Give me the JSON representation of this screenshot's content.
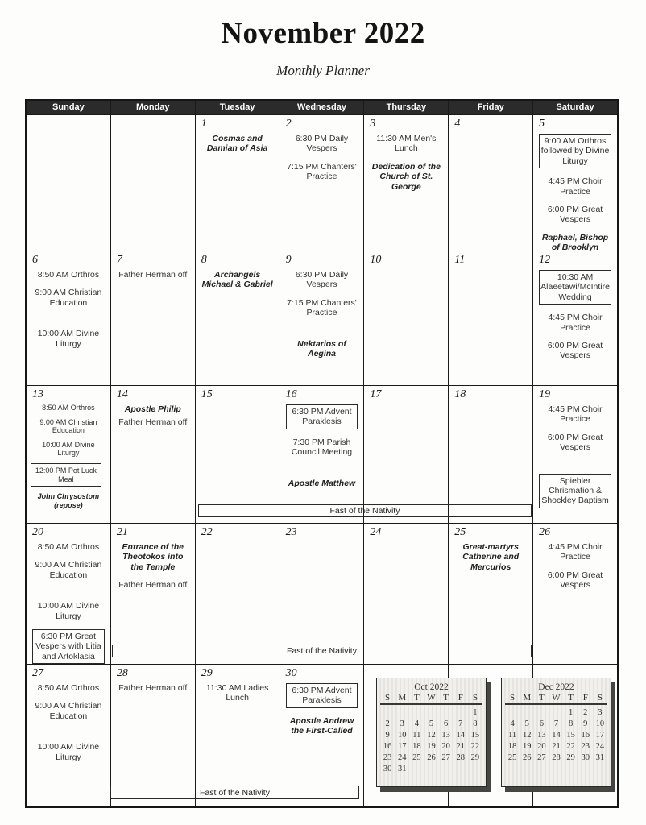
{
  "page": {
    "title": "November 2022",
    "subtitle": "Monthly Planner"
  },
  "colors": {
    "header_bg": "#2b2b2b",
    "header_text": "#ffffff",
    "grid_line": "#1a1a1a",
    "paper": "#fdfdfb"
  },
  "weekday_headers": [
    "Sunday",
    "Monday",
    "Tuesday",
    "Wednesday",
    "Thursday",
    "Friday",
    "Saturday"
  ],
  "weeks": [
    [
      null,
      null,
      {
        "date": "1",
        "events": [
          {
            "style": "saint",
            "text": "Cosmas and Damian of Asia"
          }
        ]
      },
      {
        "date": "2",
        "events": [
          {
            "style": "plain",
            "text": "6:30 PM Daily Vespers"
          },
          {
            "style": "plain",
            "text": "7:15 PM Chanters' Practice",
            "gap": 1
          }
        ]
      },
      {
        "date": "3",
        "events": [
          {
            "style": "plain",
            "text": "11:30 AM Men's Lunch"
          },
          {
            "style": "saint",
            "text": "Dedication of the Church of St. George",
            "gap": 1
          }
        ]
      },
      {
        "date": "4",
        "events": []
      },
      {
        "date": "5",
        "events": [
          {
            "style": "boxed",
            "text": "9:00 AM Orthros followed by Divine Liturgy"
          },
          {
            "style": "plain",
            "text": "4:45 PM Choir Practice",
            "gap": 1
          },
          {
            "style": "plain",
            "text": "6:00 PM Great Vespers",
            "gap": 1
          },
          {
            "style": "saint",
            "text": "Raphael, Bishop of Brooklyn",
            "gap": 1
          }
        ]
      }
    ],
    [
      {
        "date": "6",
        "events": [
          {
            "style": "plain",
            "text": "8:50 AM Orthros"
          },
          {
            "style": "plain",
            "text": "9:00 AM Christian Education",
            "gap": 1
          },
          {
            "style": "plain",
            "text": "10:00 AM Divine Liturgy",
            "gap": 2
          }
        ]
      },
      {
        "date": "7",
        "events": [
          {
            "style": "plain",
            "text": "Father Herman off"
          }
        ]
      },
      {
        "date": "8",
        "events": [
          {
            "style": "saint",
            "text": "Archangels Michael & Gabriel"
          }
        ]
      },
      {
        "date": "9",
        "events": [
          {
            "style": "plain",
            "text": "6:30 PM Daily Vespers"
          },
          {
            "style": "plain",
            "text": "7:15 PM Chanters' Practice",
            "gap": 1
          },
          {
            "style": "saint",
            "text": "Nektarios of Aegina",
            "gap": 2
          }
        ]
      },
      {
        "date": "10",
        "events": []
      },
      {
        "date": "11",
        "events": []
      },
      {
        "date": "12",
        "events": [
          {
            "style": "boxed",
            "text": "10:30 AM Alaeetawi/McIntire Wedding"
          },
          {
            "style": "plain",
            "text": "4:45 PM Choir Practice",
            "gap": 1
          },
          {
            "style": "plain",
            "text": "6:00 PM Great Vespers",
            "gap": 1
          }
        ]
      }
    ],
    [
      {
        "date": "13",
        "compact": true,
        "events": [
          {
            "style": "plain",
            "text": "8:50 AM Orthros"
          },
          {
            "style": "plain",
            "text": "9:00 AM Christian Education",
            "gap": 1
          },
          {
            "style": "plain",
            "text": "10:00 AM Divine Liturgy",
            "gap": 1
          },
          {
            "style": "boxed",
            "text": "12:00 PM Pot Luck Meal",
            "gap": 1
          },
          {
            "style": "saint",
            "text": "John Chrysostom (repose)",
            "gap": 1
          }
        ]
      },
      {
        "date": "14",
        "events": [
          {
            "style": "saint",
            "text": "Apostle Philip"
          },
          {
            "style": "plain",
            "text": "Father Herman off"
          }
        ]
      },
      {
        "date": "15",
        "events": []
      },
      {
        "date": "16",
        "events": [
          {
            "style": "boxed",
            "text": "6:30 PM Advent Paraklesis"
          },
          {
            "style": "plain",
            "text": "7:30 PM Parish Council Meeting",
            "gap": 1
          },
          {
            "style": "saint",
            "text": "Apostle Matthew",
            "gap": 2
          }
        ]
      },
      {
        "date": "17",
        "events": []
      },
      {
        "date": "18",
        "events": []
      },
      {
        "date": "19",
        "events": [
          {
            "style": "plain",
            "text": "4:45 PM Choir Practice"
          },
          {
            "style": "plain",
            "text": "6:00 PM Great Vespers",
            "gap": 1
          },
          {
            "style": "boxed",
            "text": "Spiehler Chrismation & Shockley Baptism",
            "gap": 2
          }
        ]
      }
    ],
    [
      {
        "date": "20",
        "events": [
          {
            "style": "plain",
            "text": "8:50 AM Orthros"
          },
          {
            "style": "plain",
            "text": "9:00 AM Christian Education",
            "gap": 1
          },
          {
            "style": "plain",
            "text": "10:00 AM Divine Liturgy",
            "gap": 2
          },
          {
            "style": "boxed",
            "text": "6:30 PM Great Vespers with Litia and Artoklasia",
            "gap": 1
          }
        ]
      },
      {
        "date": "21",
        "events": [
          {
            "style": "saint",
            "text": "Entrance of the Theotokos into the Temple"
          },
          {
            "style": "plain",
            "text": "Father Herman off",
            "gap": 1
          }
        ]
      },
      {
        "date": "22",
        "events": []
      },
      {
        "date": "23",
        "events": []
      },
      {
        "date": "24",
        "events": []
      },
      {
        "date": "25",
        "events": [
          {
            "style": "saint",
            "text": "Great-martyrs Catherine and Mercurios"
          }
        ]
      },
      {
        "date": "26",
        "events": [
          {
            "style": "plain",
            "text": "4:45 PM Choir Practice"
          },
          {
            "style": "plain",
            "text": "6:00 PM Great Vespers",
            "gap": 1
          }
        ]
      }
    ],
    [
      {
        "date": "27",
        "events": [
          {
            "style": "plain",
            "text": "8:50 AM Orthros"
          },
          {
            "style": "plain",
            "text": "9:00 AM Christian Education",
            "gap": 1
          },
          {
            "style": "plain",
            "text": "10:00 AM Divine Liturgy",
            "gap": 2
          }
        ]
      },
      {
        "date": "28",
        "events": [
          {
            "style": "plain",
            "text": "Father Herman off"
          }
        ]
      },
      {
        "date": "29",
        "events": [
          {
            "style": "plain",
            "text": "11:30 AM Ladies Lunch"
          }
        ]
      },
      {
        "date": "30",
        "events": [
          {
            "style": "boxed",
            "text": "6:30 PM Advent Paraklesis"
          },
          {
            "style": "saint",
            "text": "Apostle Andrew the First-Called",
            "gap": 1
          }
        ]
      },
      null,
      null,
      null
    ]
  ],
  "fast_banners": [
    {
      "label": "Fast of the Nativity"
    },
    {
      "label": "Fast of the Nativity"
    },
    {
      "label": "Fast of the Nativity"
    }
  ],
  "mini_calendars": [
    {
      "title": "Oct 2022",
      "day_headers": [
        "S",
        "M",
        "T",
        "W",
        "T",
        "F",
        "S"
      ],
      "rows": [
        [
          "",
          "",
          "",
          "",
          "",
          "",
          "1"
        ],
        [
          "2",
          "3",
          "4",
          "5",
          "6",
          "7",
          "8"
        ],
        [
          "9",
          "10",
          "11",
          "12",
          "13",
          "14",
          "15"
        ],
        [
          "16",
          "17",
          "18",
          "19",
          "20",
          "21",
          "22"
        ],
        [
          "23",
          "24",
          "25",
          "26",
          "27",
          "28",
          "29"
        ],
        [
          "30",
          "31",
          "",
          "",
          "",
          "",
          ""
        ]
      ]
    },
    {
      "title": "Dec 2022",
      "day_headers": [
        "S",
        "M",
        "T",
        "W",
        "T",
        "F",
        "S"
      ],
      "rows": [
        [
          "",
          "",
          "",
          "",
          "1",
          "2",
          "3"
        ],
        [
          "4",
          "5",
          "6",
          "7",
          "8",
          "9",
          "10"
        ],
        [
          "11",
          "12",
          "13",
          "14",
          "15",
          "16",
          "17"
        ],
        [
          "18",
          "19",
          "20",
          "21",
          "22",
          "23",
          "24"
        ],
        [
          "25",
          "26",
          "27",
          "28",
          "29",
          "30",
          "31"
        ]
      ]
    }
  ]
}
